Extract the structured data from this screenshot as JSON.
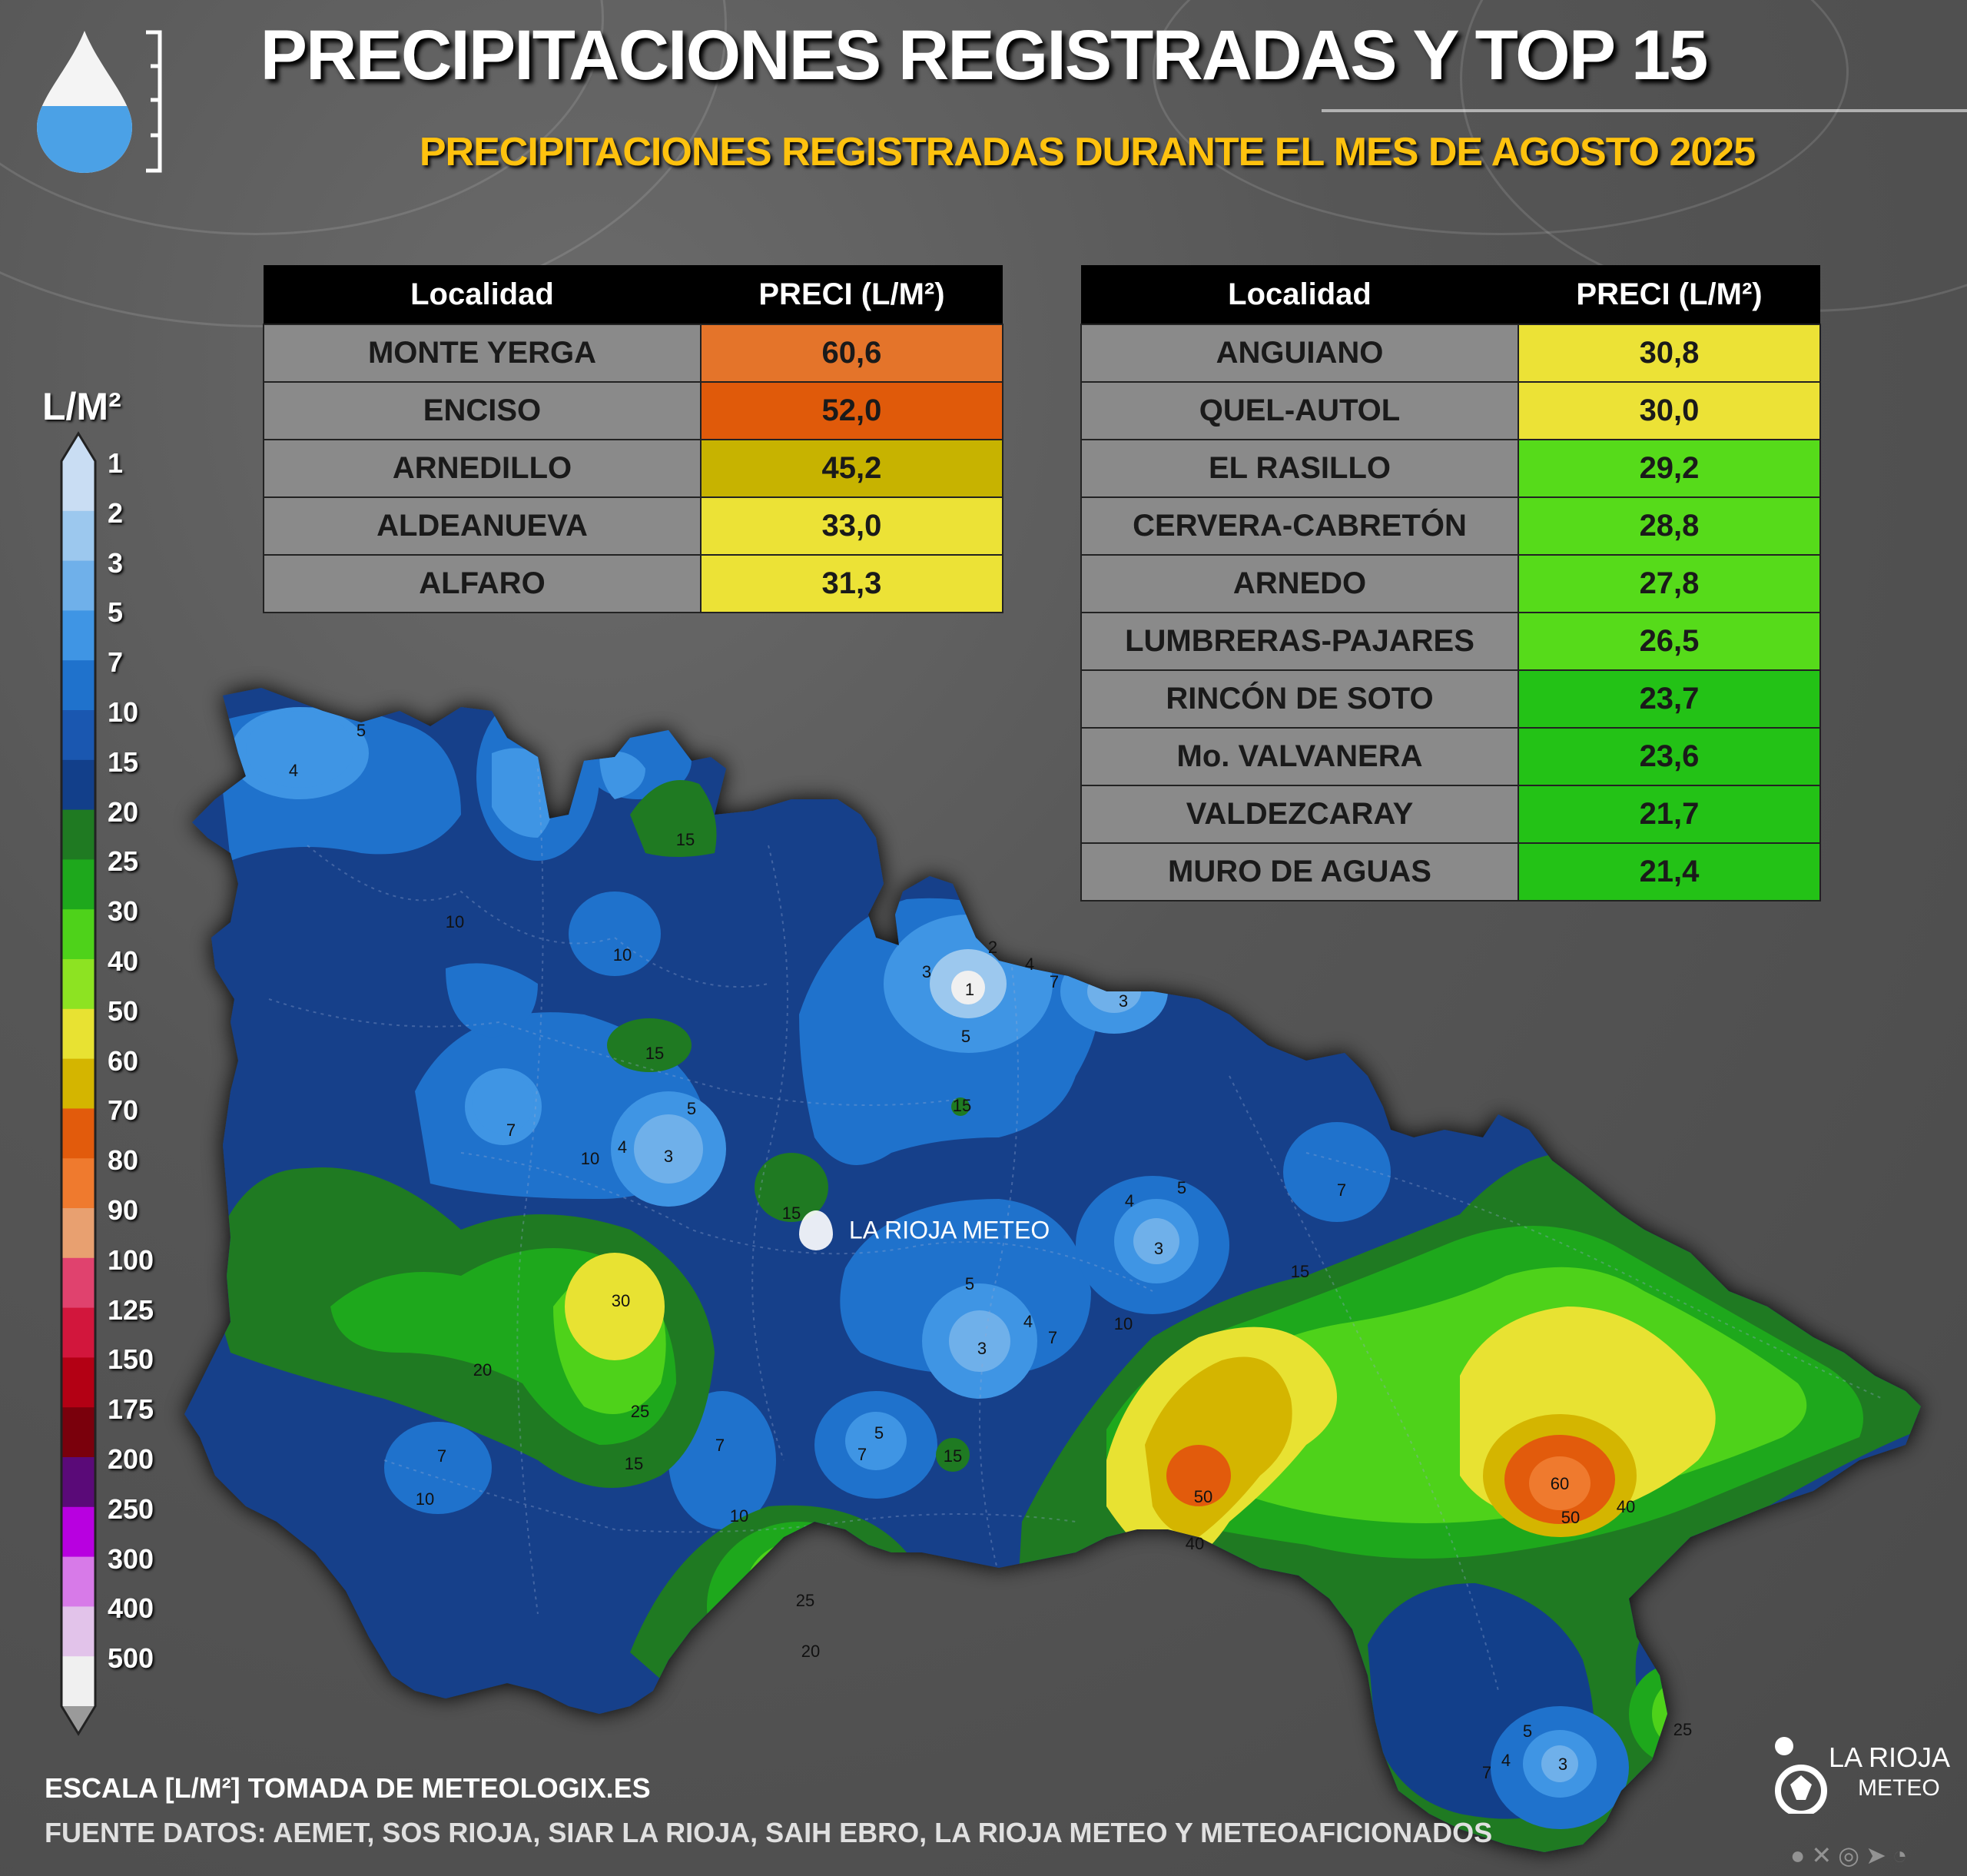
{
  "title": "PRECIPITACIONES REGISTRADAS Y TOP 15",
  "subtitle": "PRECIPITACIONES REGISTRADAS DURANTE EL MES DE AGOSTO 2025",
  "table_headers": {
    "locality": "Localidad",
    "precip": "PRECI (L/M²)"
  },
  "table_left": [
    {
      "name": "MONTE YERGA",
      "value": "60,6",
      "color": "#e4742a"
    },
    {
      "name": "ENCISO",
      "value": "52,0",
      "color": "#e05a0a"
    },
    {
      "name": "ARNEDILLO",
      "value": "45,2",
      "color": "#c7b300"
    },
    {
      "name": "ALDEANUEVA",
      "value": "33,0",
      "color": "#ece236"
    },
    {
      "name": "ALFARO",
      "value": "31,3",
      "color": "#ece236"
    }
  ],
  "table_right": [
    {
      "name": "ANGUIANO",
      "value": "30,8",
      "color": "#ece236"
    },
    {
      "name": "QUEL-AUTOL",
      "value": "30,0",
      "color": "#ece236"
    },
    {
      "name": "EL RASILLO",
      "value": "29,2",
      "color": "#56db1a"
    },
    {
      "name": "CERVERA-CABRETÓN",
      "value": "28,8",
      "color": "#56db1a"
    },
    {
      "name": "ARNEDO",
      "value": "27,8",
      "color": "#56db1a"
    },
    {
      "name": "LUMBRERAS-PAJARES",
      "value": "26,5",
      "color": "#56db1a"
    },
    {
      "name": "RINCÓN DE SOTO",
      "value": "23,7",
      "color": "#23c216"
    },
    {
      "name": "Mo. VALVANERA",
      "value": "23,6",
      "color": "#23c216"
    },
    {
      "name": "VALDEZCARAY",
      "value": "21,7",
      "color": "#23c216"
    },
    {
      "name": "MURO DE AGUAS",
      "value": "21,4",
      "color": "#23c216"
    }
  ],
  "scale": {
    "unit": "L/M²",
    "levels": [
      "1",
      "2",
      "3",
      "5",
      "7",
      "10",
      "15",
      "20",
      "25",
      "30",
      "40",
      "50",
      "60",
      "70",
      "80",
      "90",
      "100",
      "125",
      "150",
      "175",
      "200",
      "250",
      "300",
      "400",
      "500"
    ],
    "colors": [
      "#c9ddf3",
      "#9cc8ee",
      "#6fb0ea",
      "#3f95e4",
      "#1f72cc",
      "#1a57b0",
      "#123f8a",
      "#1f7a22",
      "#1ea81c",
      "#4ed21a",
      "#8de322",
      "#e8e232",
      "#d4b500",
      "#e25b0c",
      "#ef7a2e",
      "#e8a070",
      "#e0426e",
      "#d2163c",
      "#b30014",
      "#7a000c",
      "#5a0a78",
      "#b800e0",
      "#d77ae8",
      "#e2c3ea",
      "#f0f0f0"
    ]
  },
  "map_labels": [
    "4",
    "5",
    "10",
    "10",
    "15",
    "15",
    "1",
    "2",
    "3",
    "4",
    "5",
    "7",
    "3",
    "15",
    "7",
    "4",
    "3",
    "5",
    "10",
    "15",
    "7",
    "5",
    "4",
    "3",
    "5",
    "4",
    "3",
    "7",
    "10",
    "15",
    "30",
    "20",
    "25",
    "15",
    "7",
    "10",
    "7",
    "10",
    "5",
    "7",
    "15",
    "25",
    "20",
    "50",
    "40",
    "60",
    "50",
    "40",
    "25",
    "5",
    "4",
    "3",
    "7",
    "LA RIOJA METEO"
  ],
  "footer": {
    "scale_source": "ESCALA [L/M²] TOMADA DE METEOLOGIX.ES",
    "data_source": "FUENTE DATOS: AEMET, SOS RIOJA, SIAR LA RIOJA, SAIH EBRO, LA RIOJA METEO  Y METEOAFICIONADOS"
  },
  "logo": {
    "line1": "LA RIOJA",
    "line2": "METEO",
    "center_watermark": "LA RIOJA METEO"
  },
  "icons": [
    "drop-ruler-icon",
    "facebook-icon",
    "x-icon",
    "instagram-icon",
    "telegram-icon",
    "whatsapp-icon"
  ]
}
